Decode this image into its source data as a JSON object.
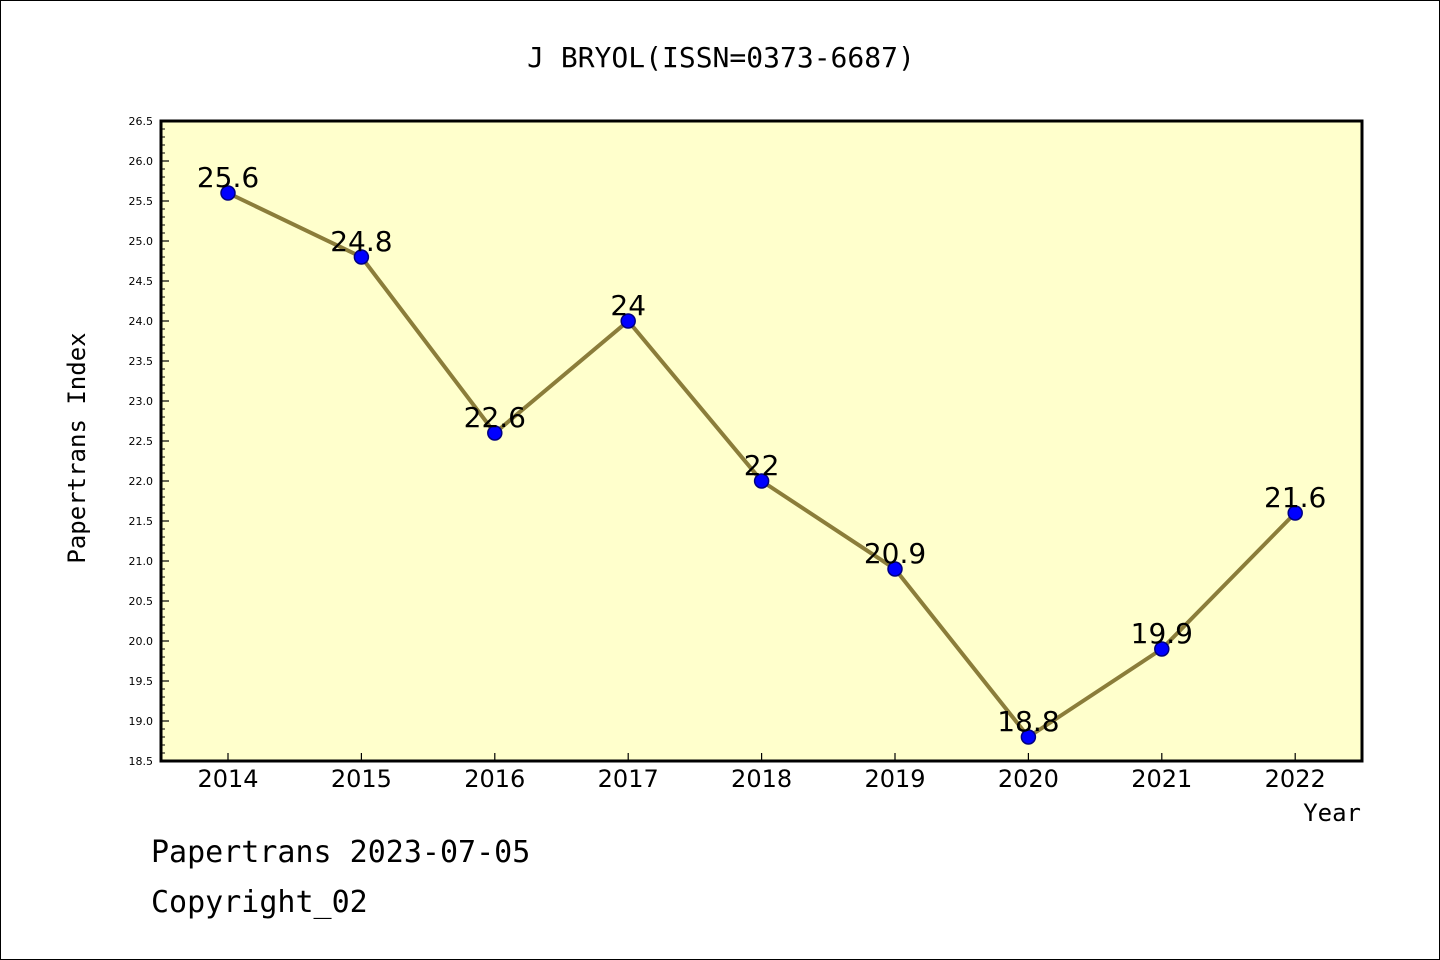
{
  "colors": {
    "plot_background": "#ffffcc",
    "line": "#8b7d3a",
    "marker_fill": "#0000ff",
    "marker_edge": "#000080",
    "axis": "#000000"
  },
  "footer": {
    "line1": "Papertrans 2023-07-05",
    "line2": "Copyright_02"
  },
  "chart_data": {
    "type": "line",
    "title": "J BRYOL(ISSN=0373-6687)",
    "xlabel": "Year",
    "ylabel": "Papertrans Index",
    "categories": [
      "2014",
      "2015",
      "2016",
      "2017",
      "2018",
      "2019",
      "2020",
      "2021",
      "2022"
    ],
    "series": [
      {
        "values": [
          25.6,
          24.8,
          22.6,
          24.0,
          22.0,
          20.9,
          18.8,
          19.9,
          21.6
        ],
        "labels": [
          "25.6",
          "24.8",
          "22.6",
          "24",
          "22",
          "20.9",
          "18.8",
          "19.9",
          "21.6"
        ]
      }
    ],
    "ylim": [
      18.5,
      26.5
    ],
    "yticks": [
      "18.5",
      "19.0",
      "19.5",
      "20.0",
      "20.5",
      "21.0",
      "21.5",
      "22.0",
      "22.5",
      "23.0",
      "23.5",
      "24.0",
      "24.5",
      "25.0",
      "25.5",
      "26.0",
      "26.5"
    ],
    "grid": false,
    "legend": false
  }
}
